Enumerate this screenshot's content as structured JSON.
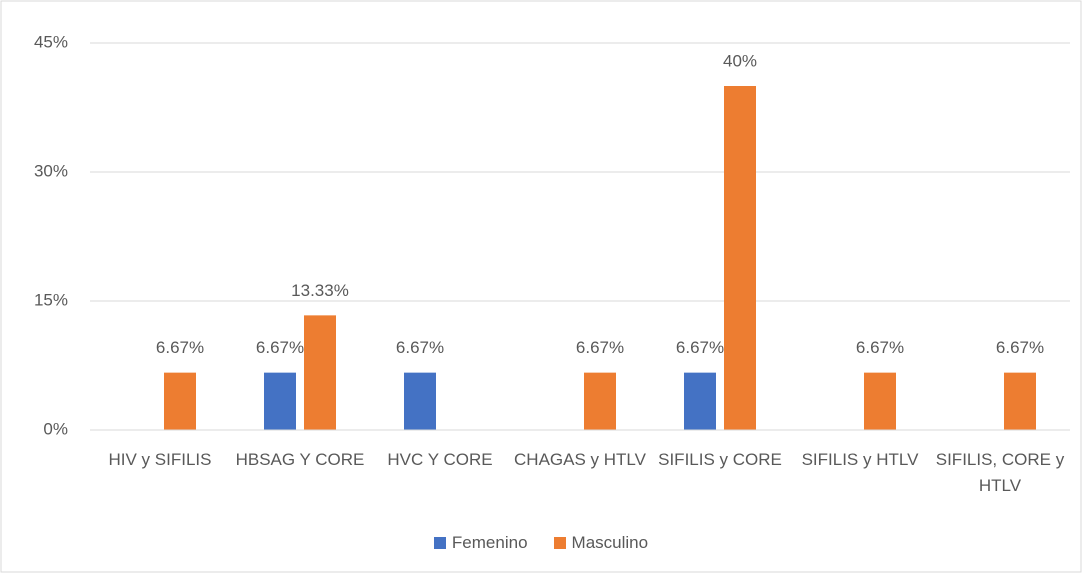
{
  "chart_data": {
    "type": "bar",
    "categories": [
      "HIV y SIFILIS",
      "HBSAG Y CORE",
      "HVC Y CORE",
      "CHAGAS y HTLV",
      "SIFILIS y CORE",
      "SIFILIS y HTLV",
      "SIFILIS, CORE y HTLV"
    ],
    "series": [
      {
        "name": "Femenino",
        "color": "#4472c4",
        "values": [
          null,
          6.67,
          6.67,
          null,
          6.67,
          null,
          null
        ],
        "value_labels": [
          null,
          "6.67%",
          "6.67%",
          null,
          "6.67%",
          null,
          null
        ]
      },
      {
        "name": "Masculino",
        "color": "#ed7d31",
        "values": [
          6.67,
          13.33,
          null,
          6.67,
          40,
          6.67,
          6.67
        ],
        "value_labels": [
          "6.67%",
          "13.33%",
          null,
          "6.67%",
          "40%",
          "6.67%",
          "6.67%"
        ]
      }
    ],
    "ylim": [
      0,
      45
    ],
    "yticks": [
      {
        "value": 0,
        "label": "0%"
      },
      {
        "value": 15,
        "label": "15%"
      },
      {
        "value": 30,
        "label": "30%"
      },
      {
        "value": 45,
        "label": "45%"
      }
    ],
    "grid": true,
    "legend": "bottom"
  }
}
